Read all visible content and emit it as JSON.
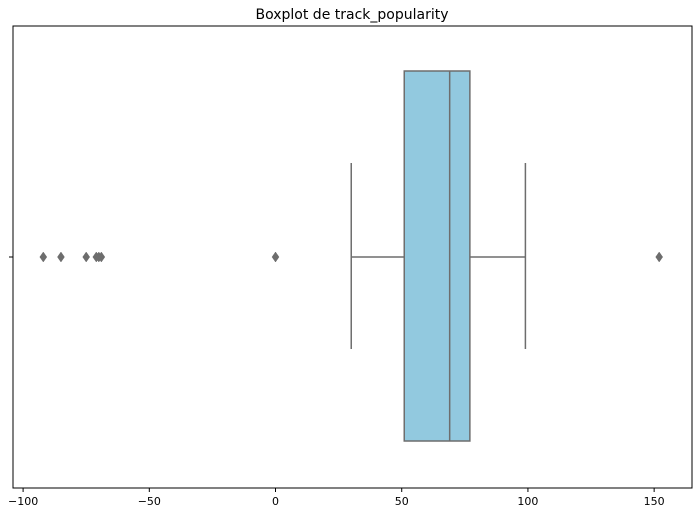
{
  "chart_data": {
    "type": "boxplot",
    "orientation": "horizontal",
    "title": "Boxplot de track_popularity",
    "xlabel": "",
    "ylabel": "",
    "xlim": [
      -104,
      165
    ],
    "x_ticks": [
      -100,
      -50,
      0,
      50,
      100,
      150
    ],
    "x_tick_labels": [
      "−100",
      "−50",
      "0",
      "50",
      "100",
      "150"
    ],
    "grid": false,
    "series": [
      {
        "whisker_low": 30,
        "q1": 51,
        "median": 69,
        "q3": 77,
        "whisker_high": 99,
        "outliers": [
          -92,
          -85,
          -75,
          -71,
          -70,
          -69,
          0,
          152
        ]
      }
    ],
    "colors": {
      "box_fill": "#92c9df",
      "line": "#6d6d6d",
      "outlier": "#6d6d6d"
    }
  }
}
